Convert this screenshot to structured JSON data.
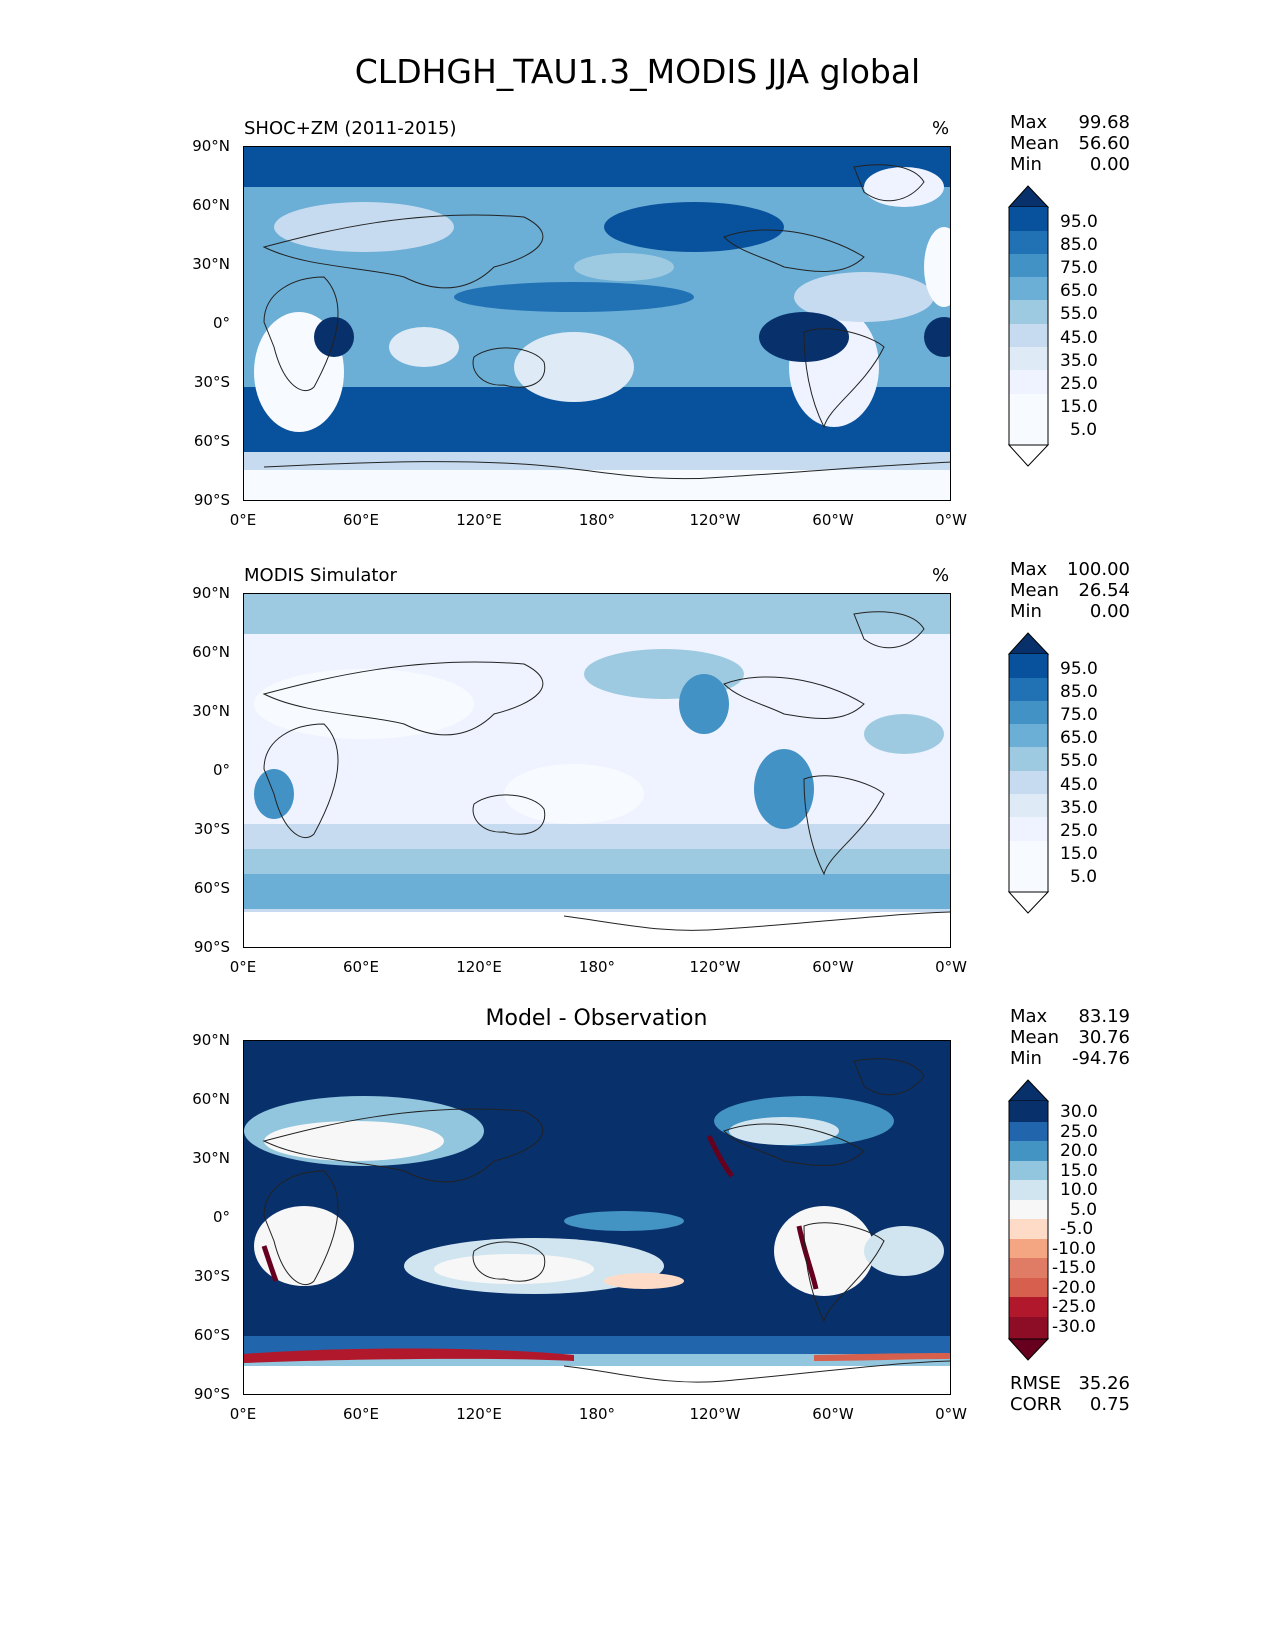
{
  "title": "CLDHGH_TAU1.3_MODIS JJA global",
  "panels": [
    {
      "title": "SHOC+ZM (2011-2015)",
      "units": "%",
      "stats": {
        "max_label": "Max",
        "max": "99.68",
        "mean_label": "Mean",
        "mean": "56.60",
        "min_label": "Min",
        "min": "0.00"
      },
      "colorbar": {
        "labels": [
          "95.0",
          "85.0",
          "75.0",
          "65.0",
          "55.0",
          "45.0",
          "35.0",
          "25.0",
          "15.0",
          "5.0"
        ],
        "colors": [
          "#08306b",
          "#08519c",
          "#2171b5",
          "#4292c6",
          "#6baed6",
          "#9ecae1",
          "#c6dbef",
          "#deebf7",
          "#eff3ff",
          "#f7fbff"
        ]
      }
    },
    {
      "title": "MODIS Simulator",
      "units": "%",
      "stats": {
        "max_label": "Max",
        "max": "100.00",
        "mean_label": "Mean",
        "mean": "26.54",
        "min_label": "Min",
        "min": "0.00"
      },
      "colorbar": {
        "labels": [
          "95.0",
          "85.0",
          "75.0",
          "65.0",
          "55.0",
          "45.0",
          "35.0",
          "25.0",
          "15.0",
          "5.0"
        ],
        "colors": [
          "#08306b",
          "#08519c",
          "#2171b5",
          "#4292c6",
          "#6baed6",
          "#9ecae1",
          "#c6dbef",
          "#deebf7",
          "#eff3ff",
          "#f7fbff"
        ]
      }
    },
    {
      "title": "Model - Observation",
      "units": "",
      "stats": {
        "max_label": "Max",
        "max": "83.19",
        "mean_label": "Mean",
        "mean": "30.76",
        "min_label": "Min",
        "min": "-94.76"
      },
      "colorbar": {
        "labels": [
          "30.0",
          "25.0",
          "20.0",
          "15.0",
          "10.0",
          "5.0",
          "-5.0",
          "-10.0",
          "-15.0",
          "-20.0",
          "-25.0",
          "-30.0"
        ],
        "colors": [
          "#08306b",
          "#2166ac",
          "#4393c3",
          "#92c5de",
          "#d1e5f0",
          "#f7f7f7",
          "#fddbc7",
          "#f4a582",
          "#d6604d",
          "#b2182b",
          "#67001f"
        ]
      },
      "metrics": {
        "rmse_label": "RMSE",
        "rmse": "35.26",
        "corr_label": "CORR",
        "corr": "0.75"
      }
    }
  ],
  "axes": {
    "y_ticks": [
      "90°N",
      "60°N",
      "30°N",
      "0°",
      "30°S",
      "60°S",
      "90°S"
    ],
    "x_ticks": [
      "0°E",
      "60°E",
      "120°E",
      "180°",
      "120°W",
      "60°W",
      "0°W"
    ]
  }
}
